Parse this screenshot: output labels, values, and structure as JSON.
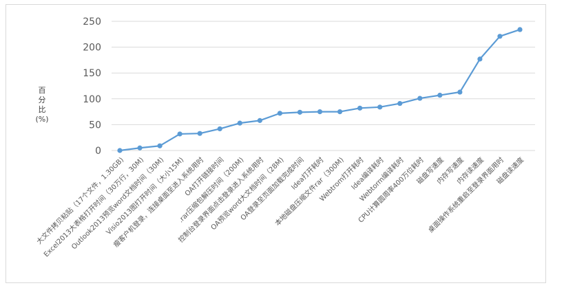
{
  "chart_data": {
    "type": "line",
    "ylabel_chars": [
      "百",
      "分",
      "比"
    ],
    "ylabel_unit": "(%)",
    "ylim": [
      0,
      250
    ],
    "yticks": [
      0,
      50,
      100,
      150,
      200,
      250
    ],
    "grid": "horizontal",
    "line_color": "#5b9bd5",
    "categories": [
      "大文件拷贝粘贴（17个文件，1.30GB)",
      "Excel2013大表格打开时间（30万行，30M)",
      "Outlook2013预览word文档时间（30M)",
      "Visio2013图打开时间（大小15M)",
      "瘦客户机登录，连接桌面至进入系统用时",
      "OA打开链接时间",
      ".rar压缩包解压时间（200M)",
      "控制台登录界面点击登录进入系统用时",
      "OA预览word大文档时间（28M)",
      "OA登录至页面加载完成时间",
      "Idea打开耗时",
      "本地磁盘压缩文件rar（300M)",
      "Webtrom打开耗时",
      "Idea编译耗时",
      "Webtorm编译耗时",
      "CPU计算圆周率400万位耗时",
      "磁盘写速度",
      "内存写速度",
      "内存读速度",
      "桌面操作系统重启至登录界面用时",
      "磁盘读速度"
    ],
    "values": [
      0,
      5,
      9,
      32,
      33,
      42,
      53,
      58,
      72,
      74,
      75,
      75,
      82,
      84,
      91,
      101,
      107,
      113,
      177,
      221,
      234
    ]
  }
}
